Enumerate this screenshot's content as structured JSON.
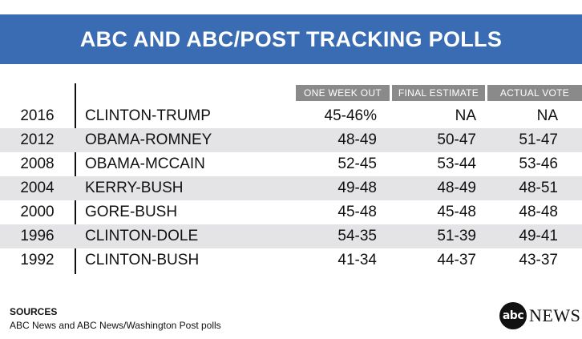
{
  "title": "ABC AND ABC/POST TRACKING POLLS",
  "columns": [
    "ONE WEEK OUT",
    "FINAL ESTIMATE",
    "ACTUAL VOTE"
  ],
  "rows": [
    {
      "year": "2016",
      "race": "CLINTON-TRUMP",
      "week_out": "45-46%",
      "final": "NA",
      "actual": "NA"
    },
    {
      "year": "2012",
      "race": "OBAMA-ROMNEY",
      "week_out": "48-49",
      "final": "50-47",
      "actual": "51-47"
    },
    {
      "year": "2008",
      "race": "OBAMA-MCCAIN",
      "week_out": "52-45",
      "final": "53-44",
      "actual": "53-46"
    },
    {
      "year": "2004",
      "race": "KERRY-BUSH",
      "week_out": "49-48",
      "final": "48-49",
      "actual": "48-51"
    },
    {
      "year": "2000",
      "race": "GORE-BUSH",
      "week_out": "45-48",
      "final": "45-48",
      "actual": "48-48"
    },
    {
      "year": "1996",
      "race": "CLINTON-DOLE",
      "week_out": "54-35",
      "final": "51-39",
      "actual": "49-41"
    },
    {
      "year": "1992",
      "race": "CLINTON-BUSH",
      "week_out": "41-34",
      "final": "44-37",
      "actual": "43-37"
    }
  ],
  "sources": {
    "label": "SOURCES",
    "text": "ABC News and ABC News/Washington Post polls"
  },
  "logo": {
    "mark": "abc",
    "word": "NEWS"
  },
  "colors": {
    "banner": "#3a6cb4",
    "header_bg": "#8a8a8a",
    "row_shade": "#e4e4e6"
  }
}
